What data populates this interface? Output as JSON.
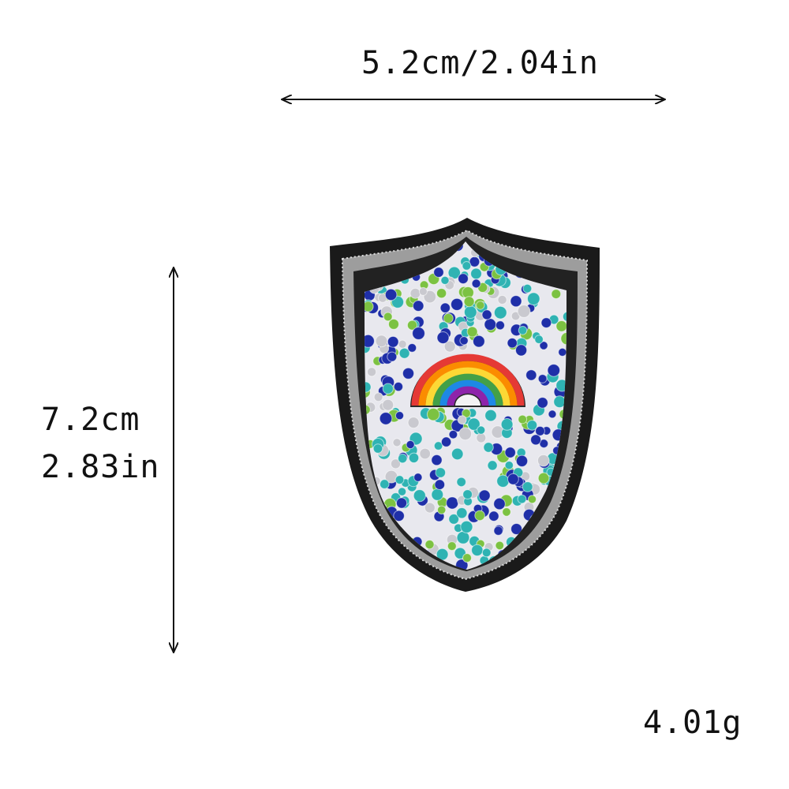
{
  "dimensions": {
    "width_label": "5.2cm/2.04in",
    "height_cm_label": "7.2cm",
    "height_in_label": "2.83in",
    "weight_label": "4.01g"
  },
  "product": {
    "item": "shield-patch",
    "motif": "rainbow",
    "colors": {
      "border": "#1a1a1a",
      "stitching": "#b8b8b8",
      "rhinestone_blue": "#1f2fa8",
      "rhinestone_green": "#7cc242",
      "rhinestone_teal": "#2fb3b3",
      "rhinestone_silver": "#c9c9cf"
    }
  }
}
